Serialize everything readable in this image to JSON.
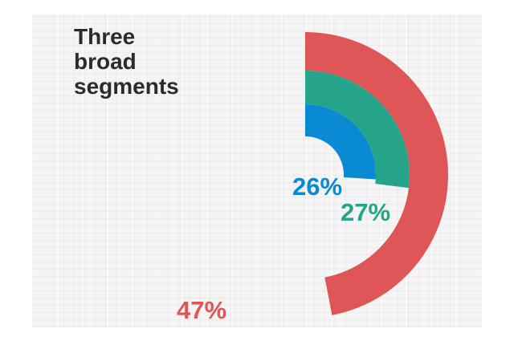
{
  "title_lines": [
    "Three",
    "broad",
    "segments"
  ],
  "colors": {
    "segment_inner": "#0b8ad4",
    "segment_middle": "#25a489",
    "segment_outer": "#de5656",
    "title": "#2b2b2b"
  },
  "chart_data": {
    "type": "pie",
    "title": "Three broad segments",
    "slices": [
      {
        "label": "26%",
        "value": 26,
        "color": "#0b8ad4"
      },
      {
        "label": "27%",
        "value": 27,
        "color": "#25a489"
      },
      {
        "label": "47%",
        "value": 47,
        "color": "#de5656"
      }
    ]
  }
}
